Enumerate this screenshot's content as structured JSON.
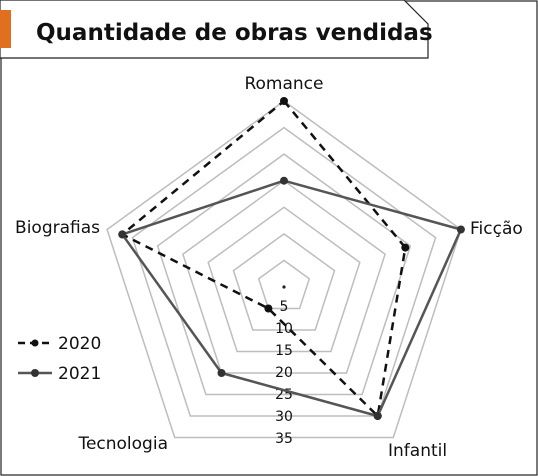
{
  "chart_data": {
    "type": "radar",
    "title": "Quantidade de obras vendidas",
    "axes": [
      "Romance",
      "Ficção",
      "Infantil",
      "Tecnologia",
      "Biografias"
    ],
    "rlim": [
      0,
      35
    ],
    "ticks": [
      5,
      10,
      15,
      20,
      25,
      30,
      35
    ],
    "tick_labels": [
      "5",
      "10",
      "15",
      "20",
      "25",
      "30",
      "35"
    ],
    "grid": true,
    "legend_position": "bottom-left",
    "series": [
      {
        "name": "2020",
        "values": [
          35,
          24,
          30,
          5,
          32
        ],
        "color": "#111111",
        "line_style": "dashed"
      },
      {
        "name": "2021",
        "values": [
          20,
          35,
          30,
          20,
          32
        ],
        "color": "#555555",
        "line_style": "solid"
      }
    ]
  },
  "colors": {
    "accent_tab": "#e07020",
    "grid": "#bdbdbd",
    "frame": "#222222"
  }
}
